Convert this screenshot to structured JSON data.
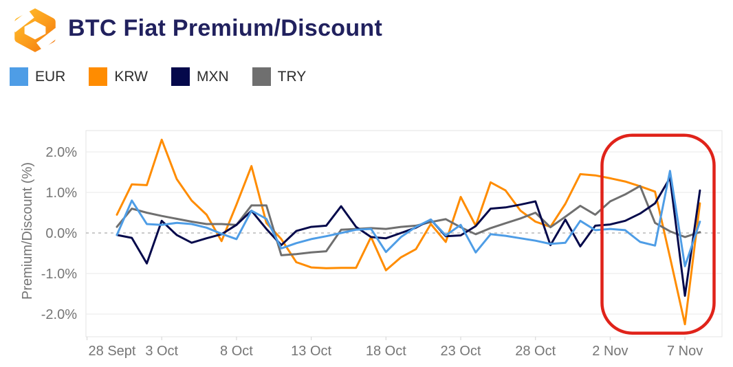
{
  "header": {
    "title": "BTC Fiat Premium/Discount",
    "logo": "orange-hex-emblem"
  },
  "legend": {
    "items": [
      {
        "label": "EUR",
        "color": "#4E9DE6"
      },
      {
        "label": "KRW",
        "color": "#FF8C00"
      },
      {
        "label": "MXN",
        "color": "#05094B"
      },
      {
        "label": "TRY",
        "color": "#6F6F6F"
      }
    ]
  },
  "chart_data": {
    "type": "line",
    "title": "BTC Fiat Premium/Discount",
    "xlabel": "",
    "ylabel": "Premium/Discount (%)",
    "ylim": [
      -2.55,
      2.55
    ],
    "grid": true,
    "zero_line": "dashed",
    "legend_position": "top-left",
    "y_ticks": [
      "2.0%",
      "1.0%",
      "0.0%",
      "-1.0%",
      "-2.0%"
    ],
    "y_tick_values": [
      2,
      1,
      0,
      -1,
      -2
    ],
    "x_tick_labels": [
      "28 Sept",
      "3 Oct",
      "8 Oct",
      "13 Oct",
      "18 Oct",
      "23 Oct",
      "28 Oct",
      "2 Nov",
      "7 Nov"
    ],
    "x_tick_days": [
      -2,
      3,
      8,
      13,
      18,
      23,
      28,
      33,
      38
    ],
    "dates": [
      "30 Sept",
      "1 Oct",
      "2 Oct",
      "3 Oct",
      "4 Oct",
      "5 Oct",
      "6 Oct",
      "7 Oct",
      "8 Oct",
      "9 Oct",
      "10 Oct",
      "11 Oct",
      "12 Oct",
      "13 Oct",
      "14 Oct",
      "15 Oct",
      "16 Oct",
      "17 Oct",
      "18 Oct",
      "19 Oct",
      "20 Oct",
      "21 Oct",
      "22 Oct",
      "23 Oct",
      "24 Oct",
      "25 Oct",
      "26 Oct",
      "27 Oct",
      "28 Oct",
      "29 Oct",
      "30 Oct",
      "31 Oct",
      "1 Nov",
      "2 Nov",
      "3 Nov",
      "4 Nov",
      "5 Nov",
      "6 Nov",
      "7 Nov",
      "8 Nov"
    ],
    "unit": "percent",
    "series": [
      {
        "name": "EUR",
        "color": "#4E9DE6",
        "values": [
          -0.05,
          0.8,
          0.22,
          0.2,
          0.25,
          0.22,
          0.13,
          -0.02,
          -0.15,
          0.55,
          0.35,
          -0.38,
          -0.25,
          -0.15,
          -0.08,
          0.0,
          0.08,
          0.1,
          -0.47,
          -0.1,
          0.15,
          0.33,
          -0.06,
          0.2,
          -0.48,
          -0.03,
          -0.07,
          -0.13,
          -0.19,
          -0.27,
          -0.24,
          0.3,
          0.07,
          0.1,
          0.07,
          -0.22,
          -0.31,
          1.53,
          -0.82,
          0.28
        ]
      },
      {
        "name": "KRW",
        "color": "#FF8C00",
        "values": [
          0.45,
          1.2,
          1.18,
          2.3,
          1.33,
          0.8,
          0.45,
          -0.2,
          0.7,
          1.65,
          0.25,
          -0.15,
          -0.72,
          -0.85,
          -0.87,
          -0.86,
          -0.86,
          -0.1,
          -0.92,
          -0.6,
          -0.4,
          0.22,
          -0.22,
          0.89,
          0.18,
          1.25,
          1.05,
          0.55,
          0.28,
          0.15,
          0.72,
          1.45,
          1.42,
          1.35,
          1.27,
          1.15,
          1.02,
          -0.6,
          -2.25,
          0.73
        ]
      },
      {
        "name": "MXN",
        "color": "#05094B",
        "values": [
          -0.05,
          -0.12,
          -0.75,
          0.3,
          -0.05,
          -0.24,
          -0.13,
          -0.03,
          0.2,
          0.55,
          0.1,
          -0.3,
          0.05,
          0.15,
          0.18,
          0.66,
          0.15,
          -0.1,
          -0.13,
          0.0,
          0.13,
          0.33,
          -0.08,
          -0.06,
          0.17,
          0.6,
          0.63,
          0.7,
          0.78,
          -0.3,
          0.33,
          -0.33,
          0.18,
          0.21,
          0.3,
          0.48,
          0.73,
          1.36,
          -1.55,
          1.05
        ]
      },
      {
        "name": "TRY",
        "color": "#6F6F6F",
        "values": [
          0.15,
          0.6,
          0.5,
          0.42,
          0.35,
          0.28,
          0.22,
          0.22,
          0.2,
          0.68,
          0.68,
          -0.55,
          -0.52,
          -0.48,
          -0.45,
          0.08,
          0.1,
          0.12,
          0.1,
          0.15,
          0.18,
          0.27,
          0.34,
          0.14,
          -0.03,
          0.12,
          0.24,
          0.36,
          0.5,
          0.14,
          0.4,
          0.67,
          0.45,
          0.78,
          0.95,
          1.16,
          0.25,
          0.04,
          -0.1,
          0.02
        ]
      }
    ],
    "annotation": {
      "shape": "rounded-rect",
      "meaning": "highlight of 2 Nov - 8 Nov volatility spike",
      "color": "#E0231A",
      "stroke_width": 4.5,
      "corner_radius": 44,
      "x1_day": 32.45,
      "x2_day": 39.95,
      "y_top_pct": 2.41,
      "y_bottom_pct": -2.47
    }
  }
}
